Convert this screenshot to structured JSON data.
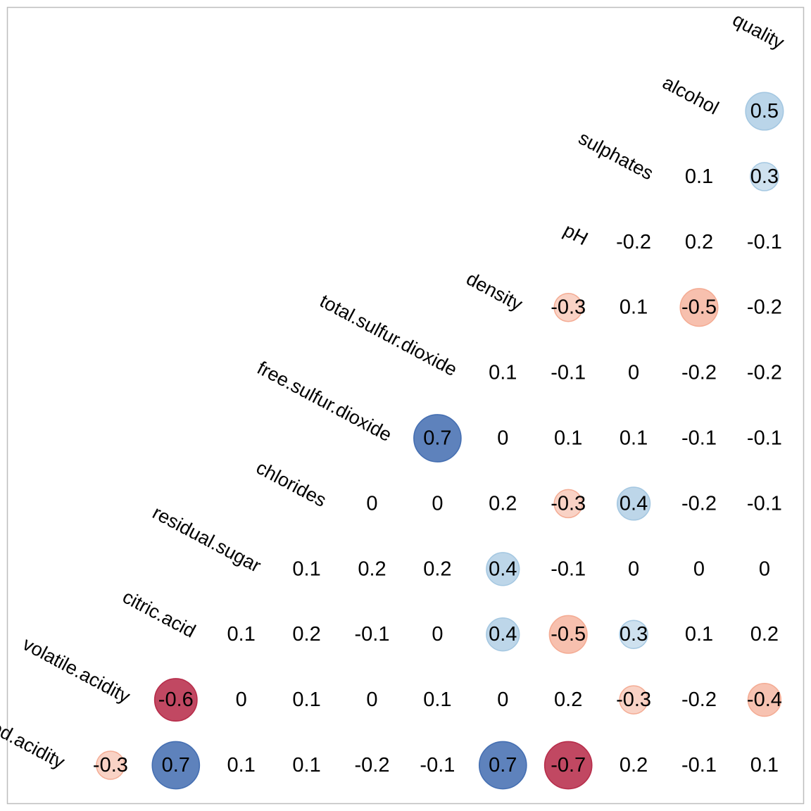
{
  "chart_data": {
    "type": "heatmap",
    "subtype": "correlation-matrix-upper-triangle",
    "variables": [
      "fixed.acidity",
      "volatile.acidity",
      "citric.acid",
      "residual.sugar",
      "chlorides",
      "free.sulfur.dioxide",
      "total.sulfur.dioxide",
      "density",
      "pH",
      "sulphates",
      "alcohol",
      "quality"
    ],
    "rows": [
      {
        "variable": "fixed.acidity",
        "values": [
          "-0.3",
          "0.7",
          "0.1",
          "0.1",
          "-0.2",
          "-0.1",
          "0.7",
          "-0.7",
          "0.2",
          "-0.1",
          "0.1"
        ]
      },
      {
        "variable": "volatile.acidity",
        "values": [
          "-0.6",
          "0",
          "0.1",
          "0",
          "0.1",
          "0",
          "0.2",
          "-0.3",
          "-0.2",
          "-0.4"
        ]
      },
      {
        "variable": "citric.acid",
        "values": [
          "0.1",
          "0.2",
          "-0.1",
          "0",
          "0.4",
          "-0.5",
          "0.3",
          "0.1",
          "0.2"
        ]
      },
      {
        "variable": "residual.sugar",
        "values": [
          "0.1",
          "0.2",
          "0.2",
          "0.4",
          "-0.1",
          "0",
          "0",
          "0"
        ]
      },
      {
        "variable": "chlorides",
        "values": [
          "0",
          "0",
          "0.2",
          "-0.3",
          "0.4",
          "-0.2",
          "-0.1"
        ]
      },
      {
        "variable": "free.sulfur.dioxide",
        "values": [
          "0.7",
          "0",
          "0.1",
          "0.1",
          "-0.1",
          "-0.1"
        ]
      },
      {
        "variable": "total.sulfur.dioxide",
        "values": [
          "0.1",
          "-0.1",
          "0",
          "-0.2",
          "-0.2"
        ]
      },
      {
        "variable": "density",
        "values": [
          "-0.3",
          "0.1",
          "-0.5",
          "-0.2"
        ]
      },
      {
        "variable": "pH",
        "values": [
          "-0.2",
          "0.2",
          "-0.1"
        ]
      },
      {
        "variable": "sulphates",
        "values": [
          "0.1",
          "0.3"
        ]
      },
      {
        "variable": "alcohol",
        "values": [
          "0.5"
        ]
      },
      {
        "variable": "quality",
        "values": []
      }
    ],
    "circle_threshold": 0.3,
    "colors": {
      "pos_strong": "#3a66ad",
      "pos_weak": "#9dc3df",
      "neg_strong": "#b3203f",
      "neg_weak": "#f3a58c",
      "text": "#000000",
      "frame": "#bdbdbd"
    }
  }
}
